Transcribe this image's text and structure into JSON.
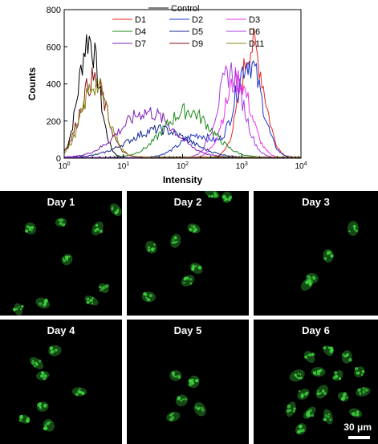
{
  "chart_data": {
    "type": "line",
    "xlabel": "Intensity",
    "ylabel": "Counts",
    "x_scale": "log",
    "xlim": [
      1,
      10000
    ],
    "ylim": [
      0,
      800
    ],
    "x_ticks": [
      1,
      10,
      100,
      1000,
      10000
    ],
    "y_ticks": [
      0,
      200,
      400,
      600,
      800
    ],
    "legend_position": "top",
    "series": [
      {
        "name": "Control",
        "color": "#000000",
        "peaks": [
          {
            "x": 2.6,
            "height": 640,
            "width": 0.17
          }
        ],
        "baseline": 4
      },
      {
        "name": "D1",
        "color": "#e8231e",
        "peaks": [
          {
            "x": 1500,
            "height": 600,
            "width": 0.2
          }
        ],
        "baseline": 4
      },
      {
        "name": "D2",
        "color": "#1f34c9",
        "peaks": [
          {
            "x": 1300,
            "height": 520,
            "width": 0.22
          },
          {
            "x": 180,
            "height": 120,
            "width": 0.3
          }
        ],
        "baseline": 4
      },
      {
        "name": "D3",
        "color": "#ee2fe8",
        "peaks": [
          {
            "x": 850,
            "height": 420,
            "width": 0.22
          }
        ],
        "baseline": 4
      },
      {
        "name": "D4",
        "color": "#1a8a1a",
        "peaks": [
          {
            "x": 120,
            "height": 250,
            "width": 0.4
          }
        ],
        "baseline": 4
      },
      {
        "name": "D5",
        "color": "#142a8c",
        "peaks": [
          {
            "x": 40,
            "height": 150,
            "width": 0.5
          }
        ],
        "baseline": 4
      },
      {
        "name": "D6",
        "color": "#a63ee0",
        "peaks": [
          {
            "x": 650,
            "height": 460,
            "width": 0.22
          }
        ],
        "baseline": 4
      },
      {
        "name": "D7",
        "color": "#7a1fb3",
        "peaks": [
          {
            "x": 25,
            "height": 245,
            "width": 0.45
          }
        ],
        "baseline": 4
      },
      {
        "name": "D9",
        "color": "#8a1414",
        "peaks": [
          {
            "x": 3.1,
            "height": 415,
            "width": 0.22
          }
        ],
        "baseline": 6
      },
      {
        "name": "D11",
        "color": "#8a8a1a",
        "peaks": [
          {
            "x": 3.3,
            "height": 395,
            "width": 0.22
          }
        ],
        "baseline": 6
      }
    ]
  },
  "microscopy": {
    "accent_color": "#3cd23c",
    "panels": [
      {
        "label": "Day 1",
        "cells": [
          [
            0.25,
            0.3
          ],
          [
            0.55,
            0.55
          ],
          [
            0.8,
            0.3
          ],
          [
            0.5,
            0.25
          ],
          [
            0.95,
            0.15
          ],
          [
            0.15,
            0.95
          ],
          [
            0.35,
            0.9
          ],
          [
            0.75,
            0.88
          ],
          [
            0.85,
            0.78
          ]
        ]
      },
      {
        "label": "Day 2",
        "cells": [
          [
            0.55,
            0.3
          ],
          [
            0.4,
            0.4
          ],
          [
            0.2,
            0.45
          ],
          [
            0.57,
            0.62
          ],
          [
            0.5,
            0.72
          ],
          [
            0.18,
            0.85
          ],
          [
            0.82,
            0.05
          ],
          [
            0.7,
            0.02
          ]
        ]
      },
      {
        "label": "Day 3",
        "cells": [
          [
            0.8,
            0.3
          ],
          [
            0.6,
            0.52
          ],
          [
            0.43,
            0.75
          ],
          [
            0.47,
            0.7
          ]
        ]
      },
      {
        "label": "Day 4",
        "cells": [
          [
            0.3,
            0.35
          ],
          [
            0.45,
            0.25
          ],
          [
            0.35,
            0.45
          ],
          [
            0.65,
            0.58
          ],
          [
            0.35,
            0.7
          ],
          [
            0.4,
            0.85
          ],
          [
            0.2,
            0.8
          ]
        ]
      },
      {
        "label": "Day 5",
        "cells": [
          [
            0.4,
            0.45
          ],
          [
            0.55,
            0.5
          ],
          [
            0.45,
            0.65
          ],
          [
            0.6,
            0.72
          ],
          [
            0.38,
            0.78
          ]
        ]
      },
      {
        "label": "Day 6",
        "cells": [
          [
            0.45,
            0.3
          ],
          [
            0.6,
            0.25
          ],
          [
            0.75,
            0.3
          ],
          [
            0.35,
            0.45
          ],
          [
            0.52,
            0.42
          ],
          [
            0.68,
            0.45
          ],
          [
            0.85,
            0.42
          ],
          [
            0.4,
            0.6
          ],
          [
            0.55,
            0.58
          ],
          [
            0.72,
            0.62
          ],
          [
            0.88,
            0.58
          ],
          [
            0.45,
            0.75
          ],
          [
            0.6,
            0.78
          ],
          [
            0.3,
            0.72
          ],
          [
            0.82,
            0.75
          ],
          [
            0.38,
            0.88
          ]
        ]
      }
    ],
    "scale_bar_label": "30 μm"
  }
}
